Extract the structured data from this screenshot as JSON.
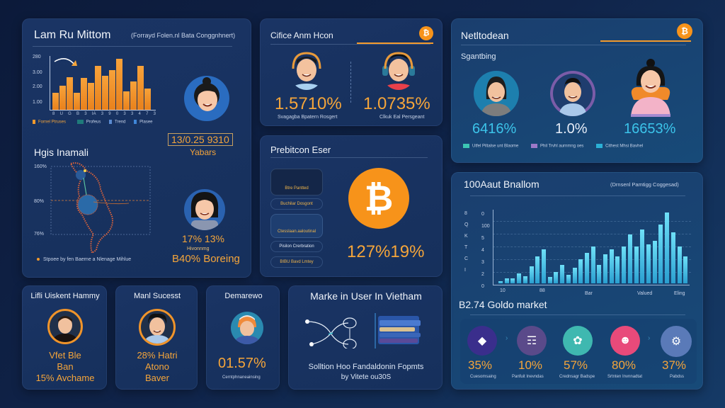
{
  "panel_market": {
    "title": "Lam Ru Mittom",
    "subtitle": "(Forrayd Folen.nl Bata Conggnhnert)",
    "yticks": [
      "280",
      "3.00",
      "2.00",
      "1.00"
    ],
    "xticks": [
      "8",
      "U",
      "G",
      "B",
      "3",
      "IA",
      "3",
      "9",
      "0",
      "3",
      "3",
      "4",
      "7",
      "3"
    ],
    "legend": [
      "Fornel Ptruses",
      "Profeus",
      "Trend",
      "Plasee"
    ],
    "date_badge": "13/0.25 9310",
    "date_caption": "Yabars"
  },
  "panel_map": {
    "title": "Hgis Inamali",
    "yticks": [
      "160%",
      "80%",
      "76%"
    ],
    "legend": "Stpoee by fen Baerne a Nlenage Mihlue",
    "stat_line1": "17% 13%",
    "stat_caption": "Hivonnmg",
    "stat_line2": "B40% Boreing"
  },
  "panel_citizens": {
    "title": "Cifice Anm Hcon",
    "btc": "₿",
    "left_value": "1.5710%",
    "left_caption": "Svagagba Bpatern Rosgert",
    "right_value": "1.0735%",
    "right_caption": "Clkuk Eal Persgeant"
  },
  "panel_prediction": {
    "title": "Prebitcon Eser",
    "pills": [
      "Btre Pantted",
      "Buchilar Dosgont",
      "Ctesslaan.aaloutinal",
      "Pisilon Crerbration",
      "BIBU Bavd Lmtey"
    ],
    "btc": "₿",
    "value": "127%19%"
  },
  "panel_network": {
    "title": "Netltodean",
    "btc": "₿",
    "section": "Sgantbing",
    "values": [
      "6416%",
      "1.0%",
      "16653%"
    ],
    "legend": [
      "Utfel Piltalse unt Blaome",
      "Phil Trvhl aurnmng oes",
      "Cithest Mhsi Bavhel"
    ],
    "legend_colors": [
      "#3cc6b4",
      "#9c79c8",
      "#2bb0d6"
    ]
  },
  "panel_growth": {
    "title": "100Aaut Bnallom",
    "subtitle": "(Drnsenl Pamtigg Coggesad)",
    "yticks": [
      "0",
      "100",
      "5",
      "4",
      "3",
      "2",
      "0"
    ],
    "xticks": [
      "10",
      "88",
      "Bar",
      "Valued",
      "Eling"
    ],
    "footer": "B2.74 Goldo market",
    "chart_values": [
      2,
      4,
      4,
      8,
      6,
      14,
      22,
      28,
      5,
      9,
      15,
      7,
      13,
      20,
      25,
      30,
      15,
      24,
      28,
      22,
      30,
      40,
      30,
      44,
      32,
      35,
      48,
      58,
      42,
      30,
      22
    ]
  },
  "panel_categories": {
    "items": [
      {
        "value": "35%",
        "label": "Cuesomsaing",
        "color": "#3a2e8c"
      },
      {
        "value": "10%",
        "label": "Panfuit Inevndas",
        "color": "#5a4a8a"
      },
      {
        "value": "57%",
        "label": "Crednsagr Badspe",
        "color": "#3fb8b0"
      },
      {
        "value": "80%",
        "label": "Srtnten Invnnadtat",
        "color": "#e84a7a"
      },
      {
        "value": "37%",
        "label": "Pabdss",
        "color": "#5a7ab8"
      }
    ]
  },
  "panel_happy": {
    "title": "Lifli Uiskent Hammy",
    "lines": [
      "Vfet Ble",
      "Ban",
      "15% Avchame"
    ]
  },
  "panel_success": {
    "title": "Manl Sucesst",
    "lines": [
      "28% Hatri",
      "Atono",
      "Baver"
    ]
  },
  "panel_demo": {
    "title": "Demarewo",
    "value": "01.57%",
    "caption": "Cerntphnaneainsing"
  },
  "panel_vietnam": {
    "title": "Marke in User In Vietham",
    "caption_line1": "Solltion Hoo Fandaldonin Fopmts",
    "caption_line2": "by Vitete ou30S"
  }
}
